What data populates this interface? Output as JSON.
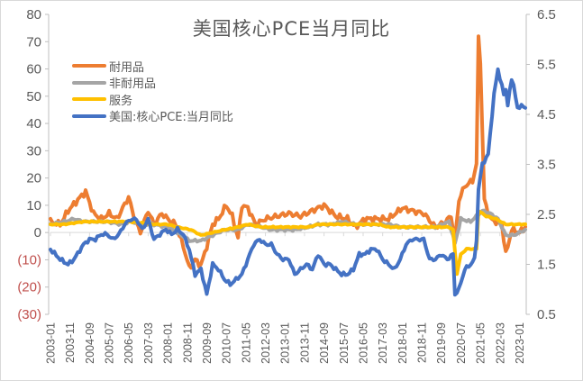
{
  "chart_data": {
    "type": "line",
    "title": "美国核心PCE当月同比",
    "xlabel": "",
    "ylabel_left": "",
    "ylabel_right": "",
    "x_start": "2003-01",
    "x_end": "2023-04",
    "x_tick_labels": [
      "2003-01",
      "2003-11",
      "2004-09",
      "2005-07",
      "2006-05",
      "2007-03",
      "2008-01",
      "2008-11",
      "2009-09",
      "2010-07",
      "2011-05",
      "2012-03",
      "2013-01",
      "2013-11",
      "2014-09",
      "2015-07",
      "2016-05",
      "2017-03",
      "2018-01",
      "2018-11",
      "2019-09",
      "2020-07",
      "2021-05",
      "2022-03",
      "2023-01"
    ],
    "y_left": {
      "min": -30,
      "max": 80,
      "step": 10,
      "tick_labels": [
        "80",
        "70",
        "60",
        "50",
        "40",
        "30",
        "20",
        "10",
        "0",
        "(10)",
        "(20)",
        "(30)"
      ],
      "negative_color": "#c0504d"
    },
    "y_right": {
      "min": 0.5,
      "max": 6.5,
      "step": 1,
      "tick_labels": [
        "6.5",
        "5.5",
        "4.5",
        "3.5",
        "2.5",
        "1.5",
        "0.5"
      ]
    },
    "legend_position": "upper-left",
    "grid": false,
    "series": [
      {
        "name": "耐用品",
        "axis": "left",
        "color": "#ed7d31",
        "keypoints": [
          [
            "2003-01",
            4
          ],
          [
            "2003-06",
            3
          ],
          [
            "2003-10",
            8
          ],
          [
            "2004-03",
            12
          ],
          [
            "2004-07",
            15
          ],
          [
            "2004-11",
            7
          ],
          [
            "2005-03",
            5
          ],
          [
            "2005-07",
            7
          ],
          [
            "2005-11",
            5
          ],
          [
            "2006-02",
            9
          ],
          [
            "2006-05",
            13
          ],
          [
            "2006-08",
            5
          ],
          [
            "2006-11",
            0
          ],
          [
            "2007-03",
            8
          ],
          [
            "2007-06",
            3
          ],
          [
            "2007-10",
            7
          ],
          [
            "2008-01",
            5
          ],
          [
            "2008-05",
            3
          ],
          [
            "2008-09",
            -5
          ],
          [
            "2008-12",
            -13
          ],
          [
            "2009-03",
            -10
          ],
          [
            "2009-06",
            -12
          ],
          [
            "2009-09",
            -5
          ],
          [
            "2009-12",
            3
          ],
          [
            "2010-03",
            5
          ],
          [
            "2010-07",
            10
          ],
          [
            "2010-10",
            6
          ],
          [
            "2011-01",
            -2
          ],
          [
            "2011-03",
            10
          ],
          [
            "2011-06",
            9
          ],
          [
            "2011-10",
            3
          ],
          [
            "2012-03",
            5
          ],
          [
            "2012-09",
            6
          ],
          [
            "2013-03",
            7
          ],
          [
            "2013-09",
            6
          ],
          [
            "2014-03",
            8
          ],
          [
            "2014-09",
            10
          ],
          [
            "2015-03",
            6
          ],
          [
            "2015-09",
            5
          ],
          [
            "2016-01",
            2
          ],
          [
            "2016-06",
            5
          ],
          [
            "2016-12",
            5
          ],
          [
            "2017-06",
            5
          ],
          [
            "2018-01",
            9
          ],
          [
            "2018-06",
            8
          ],
          [
            "2018-12",
            7
          ],
          [
            "2019-06",
            2
          ],
          [
            "2019-11",
            4
          ],
          [
            "2020-02",
            6
          ],
          [
            "2020-04",
            -3
          ],
          [
            "2020-06",
            12
          ],
          [
            "2020-09",
            17
          ],
          [
            "2021-01",
            19
          ],
          [
            "2021-03",
            25
          ],
          [
            "2021-04",
            72
          ],
          [
            "2021-05",
            62
          ],
          [
            "2021-07",
            12
          ],
          [
            "2021-10",
            5
          ],
          [
            "2022-01",
            4
          ],
          [
            "2022-04",
            3
          ],
          [
            "2022-06",
            -8
          ],
          [
            "2022-09",
            1
          ],
          [
            "2023-01",
            0
          ],
          [
            "2023-04",
            2
          ]
        ]
      },
      {
        "name": "非耐用品",
        "axis": "left",
        "color": "#a5a5a5",
        "keypoints": [
          [
            "2003-01",
            3
          ],
          [
            "2003-08",
            4
          ],
          [
            "2004-01",
            5
          ],
          [
            "2004-06",
            4
          ],
          [
            "2005-01",
            4
          ],
          [
            "2005-06",
            4
          ],
          [
            "2006-01",
            3
          ],
          [
            "2006-06",
            4
          ],
          [
            "2007-01",
            3
          ],
          [
            "2007-06",
            3
          ],
          [
            "2008-01",
            2
          ],
          [
            "2008-06",
            0
          ],
          [
            "2008-12",
            -3
          ],
          [
            "2009-06",
            -3
          ],
          [
            "2009-12",
            -1
          ],
          [
            "2010-06",
            1
          ],
          [
            "2011-01",
            1
          ],
          [
            "2011-06",
            3
          ],
          [
            "2012-01",
            2
          ],
          [
            "2012-06",
            1
          ],
          [
            "2013-01",
            1
          ],
          [
            "2013-06",
            1
          ],
          [
            "2014-01",
            2
          ],
          [
            "2014-06",
            3
          ],
          [
            "2015-01",
            3
          ],
          [
            "2015-06",
            4
          ],
          [
            "2016-01",
            3
          ],
          [
            "2016-06",
            3
          ],
          [
            "2017-01",
            3
          ],
          [
            "2017-06",
            3
          ],
          [
            "2018-01",
            2
          ],
          [
            "2018-06",
            2
          ],
          [
            "2019-01",
            2
          ],
          [
            "2019-06",
            2
          ],
          [
            "2020-01",
            4
          ],
          [
            "2020-04",
            -4
          ],
          [
            "2020-07",
            5
          ],
          [
            "2020-12",
            4
          ],
          [
            "2021-03",
            6
          ],
          [
            "2021-06",
            8
          ],
          [
            "2021-10",
            7
          ],
          [
            "2022-02",
            5
          ],
          [
            "2022-06",
            -1
          ],
          [
            "2022-10",
            -1
          ],
          [
            "2023-01",
            0
          ],
          [
            "2023-04",
            1
          ]
        ]
      },
      {
        "name": "服务",
        "axis": "left",
        "color": "#ffc000",
        "keypoints": [
          [
            "2003-01",
            3
          ],
          [
            "2003-08",
            3
          ],
          [
            "2004-06",
            4
          ],
          [
            "2005-06",
            4
          ],
          [
            "2006-06",
            4
          ],
          [
            "2007-06",
            3
          ],
          [
            "2008-01",
            3
          ],
          [
            "2008-06",
            2
          ],
          [
            "2009-01",
            1
          ],
          [
            "2009-06",
            -1
          ],
          [
            "2009-12",
            0
          ],
          [
            "2010-06",
            1
          ],
          [
            "2011-01",
            2
          ],
          [
            "2011-06",
            3
          ],
          [
            "2012-01",
            2
          ],
          [
            "2012-06",
            2
          ],
          [
            "2013-01",
            2
          ],
          [
            "2013-06",
            2
          ],
          [
            "2014-01",
            2
          ],
          [
            "2014-06",
            3
          ],
          [
            "2015-01",
            3
          ],
          [
            "2015-06",
            3
          ],
          [
            "2016-01",
            3
          ],
          [
            "2016-06",
            3
          ],
          [
            "2017-01",
            3
          ],
          [
            "2017-06",
            2
          ],
          [
            "2018-01",
            2
          ],
          [
            "2018-06",
            2
          ],
          [
            "2019-01",
            2
          ],
          [
            "2019-06",
            2
          ],
          [
            "2020-01",
            2
          ],
          [
            "2020-03",
            1
          ],
          [
            "2020-05",
            -15
          ],
          [
            "2020-07",
            -8
          ],
          [
            "2020-10",
            -6
          ],
          [
            "2021-02",
            -6
          ],
          [
            "2021-03",
            -6
          ],
          [
            "2021-04",
            8
          ],
          [
            "2021-08",
            6
          ],
          [
            "2022-01",
            5
          ],
          [
            "2022-06",
            3
          ],
          [
            "2022-10",
            3
          ],
          [
            "2023-01",
            3
          ],
          [
            "2023-04",
            3
          ]
        ]
      },
      {
        "name": "美国:核心PCE:当月同比",
        "axis": "right",
        "color": "#4472c4",
        "keypoints": [
          [
            "2003-01",
            1.8
          ],
          [
            "2003-06",
            1.6
          ],
          [
            "2003-10",
            1.5
          ],
          [
            "2004-01",
            1.6
          ],
          [
            "2004-06",
            1.9
          ],
          [
            "2004-09",
            2.0
          ],
          [
            "2004-12",
            2.0
          ],
          [
            "2005-03",
            2.1
          ],
          [
            "2005-06",
            2.1
          ],
          [
            "2005-09",
            2.0
          ],
          [
            "2005-12",
            2.1
          ],
          [
            "2006-03",
            2.3
          ],
          [
            "2006-06",
            2.4
          ],
          [
            "2006-09",
            2.4
          ],
          [
            "2006-12",
            2.2
          ],
          [
            "2007-03",
            2.4
          ],
          [
            "2007-06",
            2.0
          ],
          [
            "2007-09",
            2.1
          ],
          [
            "2007-12",
            2.2
          ],
          [
            "2008-03",
            2.1
          ],
          [
            "2008-06",
            2.2
          ],
          [
            "2008-09",
            2.1
          ],
          [
            "2008-12",
            1.8
          ],
          [
            "2009-03",
            1.3
          ],
          [
            "2009-06",
            1.4
          ],
          [
            "2009-09",
            0.9
          ],
          [
            "2009-12",
            1.5
          ],
          [
            "2010-03",
            1.4
          ],
          [
            "2010-06",
            1.2
          ],
          [
            "2010-09",
            1.1
          ],
          [
            "2010-12",
            1.2
          ],
          [
            "2011-03",
            1.3
          ],
          [
            "2011-06",
            1.6
          ],
          [
            "2011-09",
            1.9
          ],
          [
            "2011-12",
            2.0
          ],
          [
            "2012-03",
            1.9
          ],
          [
            "2012-06",
            1.9
          ],
          [
            "2012-09",
            1.7
          ],
          [
            "2012-12",
            1.6
          ],
          [
            "2013-03",
            1.6
          ],
          [
            "2013-06",
            1.3
          ],
          [
            "2013-09",
            1.4
          ],
          [
            "2013-12",
            1.5
          ],
          [
            "2014-03",
            1.4
          ],
          [
            "2014-06",
            1.7
          ],
          [
            "2014-09",
            1.5
          ],
          [
            "2014-12",
            1.5
          ],
          [
            "2015-03",
            1.4
          ],
          [
            "2015-06",
            1.3
          ],
          [
            "2015-09",
            1.3
          ],
          [
            "2015-12",
            1.4
          ],
          [
            "2016-03",
            1.7
          ],
          [
            "2016-06",
            1.7
          ],
          [
            "2016-09",
            1.8
          ],
          [
            "2016-12",
            1.8
          ],
          [
            "2017-03",
            1.6
          ],
          [
            "2017-06",
            1.5
          ],
          [
            "2017-09",
            1.4
          ],
          [
            "2017-12",
            1.6
          ],
          [
            "2018-03",
            1.9
          ],
          [
            "2018-06",
            2.0
          ],
          [
            "2018-09",
            2.0
          ],
          [
            "2018-12",
            2.0
          ],
          [
            "2019-03",
            1.6
          ],
          [
            "2019-06",
            1.6
          ],
          [
            "2019-09",
            1.7
          ],
          [
            "2019-12",
            1.6
          ],
          [
            "2020-03",
            1.7
          ],
          [
            "2020-04",
            0.9
          ],
          [
            "2020-06",
            1.0
          ],
          [
            "2020-09",
            1.4
          ],
          [
            "2020-12",
            1.5
          ],
          [
            "2021-02",
            1.6
          ],
          [
            "2021-03",
            2.0
          ],
          [
            "2021-04",
            3.0
          ],
          [
            "2021-06",
            3.5
          ],
          [
            "2021-09",
            3.7
          ],
          [
            "2021-12",
            4.9
          ],
          [
            "2022-02",
            5.4
          ],
          [
            "2022-05",
            4.9
          ],
          [
            "2022-06",
            5.0
          ],
          [
            "2022-07",
            4.7
          ],
          [
            "2022-09",
            5.2
          ],
          [
            "2022-10",
            5.1
          ],
          [
            "2022-12",
            4.6
          ],
          [
            "2023-02",
            4.7
          ],
          [
            "2023-04",
            4.6
          ]
        ]
      }
    ]
  }
}
